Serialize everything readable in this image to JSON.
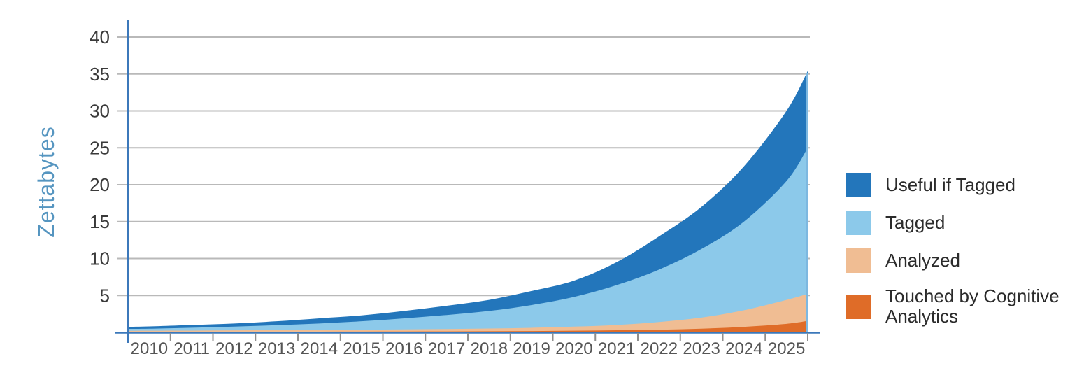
{
  "chart_data": {
    "type": "area",
    "stacked": true,
    "title": "",
    "xlabel": "",
    "ylabel": "Zettabytes",
    "ylim": [
      0,
      40
    ],
    "yticks": [
      5,
      10,
      15,
      20,
      25,
      30,
      35,
      40
    ],
    "xlim": [
      2009.5,
      2025.5
    ],
    "grid": true,
    "legend_position": "right",
    "x": [
      2009.5,
      2010,
      2011,
      2012,
      2013,
      2014,
      2015,
      2016,
      2017,
      2018,
      2019,
      2020,
      2021,
      2022,
      2023,
      2024,
      2025,
      2025.5
    ],
    "xtick_labels": [
      "2010",
      "2011",
      "2012",
      "2013",
      "2014",
      "2015",
      "2016",
      "2017",
      "2018",
      "2019",
      "2020",
      "2021",
      "2022",
      "2023",
      "2024",
      "2025"
    ],
    "series": [
      {
        "name": "Touched by Cognitive Analytics",
        "color": "#df6c28",
        "values": [
          0.1,
          0.1,
          0.1,
          0.1,
          0.1,
          0.1,
          0.11,
          0.12,
          0.13,
          0.15,
          0.18,
          0.22,
          0.28,
          0.35,
          0.5,
          0.75,
          1.15,
          1.55
        ]
      },
      {
        "name": "Analyzed",
        "color": "#f0bd93",
        "values": [
          0.11,
          0.12,
          0.14,
          0.17,
          0.2,
          0.23,
          0.25,
          0.28,
          0.32,
          0.37,
          0.44,
          0.56,
          0.72,
          1.05,
          1.5,
          2.25,
          3.25,
          3.65
        ]
      },
      {
        "name": "Tagged",
        "color": "#8cc9ea",
        "values": [
          0.26,
          0.28,
          0.39,
          0.51,
          0.67,
          0.87,
          1.14,
          1.5,
          1.9,
          2.38,
          3.08,
          4.02,
          5.4,
          7.1,
          9.3,
          12.0,
          16.1,
          19.8
        ]
      },
      {
        "name": "Useful if Tagged",
        "color": "#2376bb",
        "values": [
          0.28,
          0.3,
          0.37,
          0.42,
          0.53,
          0.7,
          0.8,
          1.0,
          1.25,
          1.5,
          1.9,
          2.2,
          3.1,
          4.5,
          5.7,
          7.5,
          9.5,
          10.4
        ]
      }
    ],
    "legend": [
      {
        "label": "Useful if Tagged",
        "color": "#2376bb"
      },
      {
        "label": "Tagged",
        "color": "#8cc9ea"
      },
      {
        "label": "Analyzed",
        "color": "#f0bd93"
      },
      {
        "label": "Touched by Cognitive Analytics",
        "color": "#df6c28"
      }
    ],
    "colors": {
      "axis": "#3c78ba",
      "grid": "#b9b9b9",
      "tick": "#8f8f8f",
      "ytick_text": "#3a3a3a",
      "xtick_text": "#555555",
      "ylabel_text": "#5595c0",
      "legend_text": "#2b2b2b",
      "right_edge_line": "#7db8e0",
      "background": "#ffffff"
    }
  }
}
